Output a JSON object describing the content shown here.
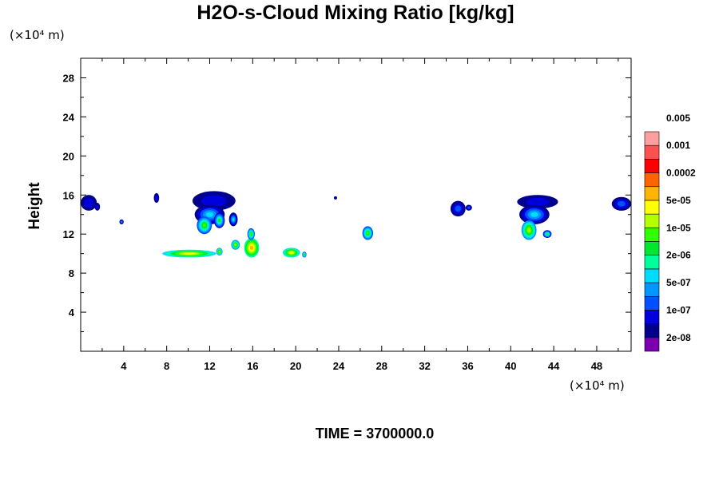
{
  "chart_data": {
    "type": "heatmap",
    "title": "H2O-s-Cloud Mixing Ratio [kg/kg]",
    "ylabel": "Height",
    "y_unit": "(×10⁴ m)",
    "x_unit": "(×10⁴ m)",
    "time_label": "TIME = 3700000.0",
    "xlim": [
      0,
      51.2
    ],
    "ylim": [
      0,
      30
    ],
    "x_ticks": [
      4,
      8,
      12,
      16,
      20,
      24,
      28,
      32,
      36,
      40,
      44,
      48
    ],
    "y_ticks": [
      4,
      8,
      12,
      16,
      20,
      24,
      28
    ],
    "grid": false,
    "legend_position": "right",
    "colorbar": {
      "colors": [
        "#7a00b0",
        "#00008c",
        "#0000dc",
        "#0050ff",
        "#0096ff",
        "#00dcff",
        "#00ff9c",
        "#00e632",
        "#32ff00",
        "#b4ff00",
        "#ffff00",
        "#ffb400",
        "#ff6400",
        "#ff0000",
        "#ff5050",
        "#ffa0a0"
      ],
      "labels": [
        "2e-08",
        "1e-07",
        "5e-07",
        "2e-06",
        "1e-05",
        "5e-05",
        "0.0002",
        "0.001",
        "0.005"
      ]
    },
    "cloud_regions": [
      {
        "x": [
          0,
          1.5
        ],
        "y": [
          14.4,
          16.0
        ],
        "level": 2
      },
      {
        "x": [
          1.3,
          1.8
        ],
        "y": [
          14.4,
          15.2
        ],
        "level": 2
      },
      {
        "x": [
          3.6,
          4.0
        ],
        "y": [
          13.0,
          13.5
        ],
        "level": 4
      },
      {
        "x": [
          6.8,
          7.3
        ],
        "y": [
          15.2,
          16.2
        ],
        "level": 2
      },
      {
        "x": [
          10.4,
          14.4
        ],
        "y": [
          14.4,
          16.4
        ],
        "level": 2
      },
      {
        "x": [
          10.6,
          13.4
        ],
        "y": [
          13.0,
          15.0
        ],
        "level": 5
      },
      {
        "x": [
          10.8,
          12.2
        ],
        "y": [
          12.0,
          13.8
        ],
        "level": 8
      },
      {
        "x": [
          12.4,
          13.4
        ],
        "y": [
          12.6,
          14.2
        ],
        "level": 7
      },
      {
        "x": [
          13.8,
          14.6
        ],
        "y": [
          12.8,
          14.2
        ],
        "level": 5
      },
      {
        "x": [
          7.6,
          12.6
        ],
        "y": [
          9.6,
          10.4
        ],
        "level": 10
      },
      {
        "x": [
          12.6,
          13.2
        ],
        "y": [
          9.8,
          10.6
        ],
        "level": 9
      },
      {
        "x": [
          14.0,
          14.8
        ],
        "y": [
          10.4,
          11.4
        ],
        "level": 9
      },
      {
        "x": [
          15.2,
          16.6
        ],
        "y": [
          9.6,
          11.6
        ],
        "level": 11
      },
      {
        "x": [
          15.5,
          16.2
        ],
        "y": [
          11.4,
          12.6
        ],
        "level": 8
      },
      {
        "x": [
          18.8,
          20.4
        ],
        "y": [
          9.6,
          10.6
        ],
        "level": 10
      },
      {
        "x": [
          20.6,
          21.0
        ],
        "y": [
          9.6,
          10.2
        ],
        "level": 8
      },
      {
        "x": [
          26.2,
          27.2
        ],
        "y": [
          11.4,
          12.8
        ],
        "level": 8
      },
      {
        "x": [
          34.4,
          35.8
        ],
        "y": [
          13.8,
          15.4
        ],
        "level": 3
      },
      {
        "x": [
          35.8,
          36.4
        ],
        "y": [
          14.4,
          15.0
        ],
        "level": 3
      },
      {
        "x": [
          40.6,
          44.4
        ],
        "y": [
          14.6,
          16.0
        ],
        "level": 2
      },
      {
        "x": [
          40.8,
          43.6
        ],
        "y": [
          13.0,
          15.0
        ],
        "level": 5
      },
      {
        "x": [
          41.0,
          42.4
        ],
        "y": [
          11.4,
          13.4
        ],
        "level": 9
      },
      {
        "x": [
          43.0,
          43.8
        ],
        "y": [
          11.6,
          12.4
        ],
        "level": 7
      },
      {
        "x": [
          49.4,
          51.2
        ],
        "y": [
          14.4,
          15.8
        ],
        "level": 3
      },
      {
        "x": [
          23.6,
          23.8
        ],
        "y": [
          15.6,
          15.8
        ],
        "level": 1
      }
    ]
  }
}
